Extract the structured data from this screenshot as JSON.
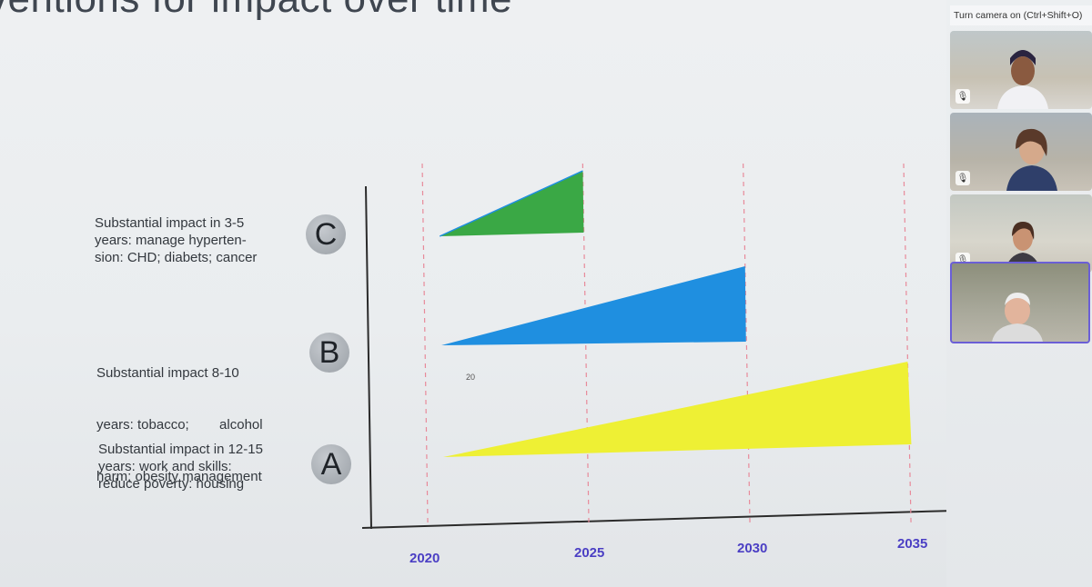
{
  "slide": {
    "title": "ventions for impact over time",
    "rows": [
      {
        "letter": "C",
        "text_lines": [
          "Substantial impact in 3-5",
          "years: manage hyperten-",
          "sion: CHD; diabets; cancer"
        ]
      },
      {
        "letter": "B",
        "text_lines": [
          "Substantial impact 8-10",
          "years: tobacco;        alcohol",
          "harm; obesity management"
        ]
      },
      {
        "letter": "A",
        "text_lines": [
          "Substantial impact in 12-15",
          "years: work and skills:",
          "reduce poverty: housing"
        ]
      }
    ],
    "stray_label": "20",
    "colors": {
      "green": "#3aa845",
      "blue": "#1f8fe0",
      "yellow": "#eef034",
      "dashed": "#e88a9a",
      "tick_text": "#4b3fc4"
    }
  },
  "chart_data": {
    "type": "area",
    "x_ticks": [
      "2020",
      "2025",
      "2030",
      "2035"
    ],
    "series": [
      {
        "name": "C",
        "start": 2020,
        "end": 2025,
        "color": "#3aa845"
      },
      {
        "name": "B",
        "start": 2020,
        "end": 2030,
        "color": "#1f8fe0"
      },
      {
        "name": "A",
        "start": 2020,
        "end": 2035,
        "color": "#eef034"
      }
    ],
    "grid": "vertical dashed at ticks"
  },
  "meeting_panel": {
    "camera_hint": "Turn camera on (Ctrl+Shift+O)",
    "participants": [
      {
        "mic": "muted",
        "active": false
      },
      {
        "mic": "muted",
        "active": false
      },
      {
        "mic": "muted",
        "active": false
      },
      {
        "mic": "on",
        "active": true
      }
    ]
  }
}
